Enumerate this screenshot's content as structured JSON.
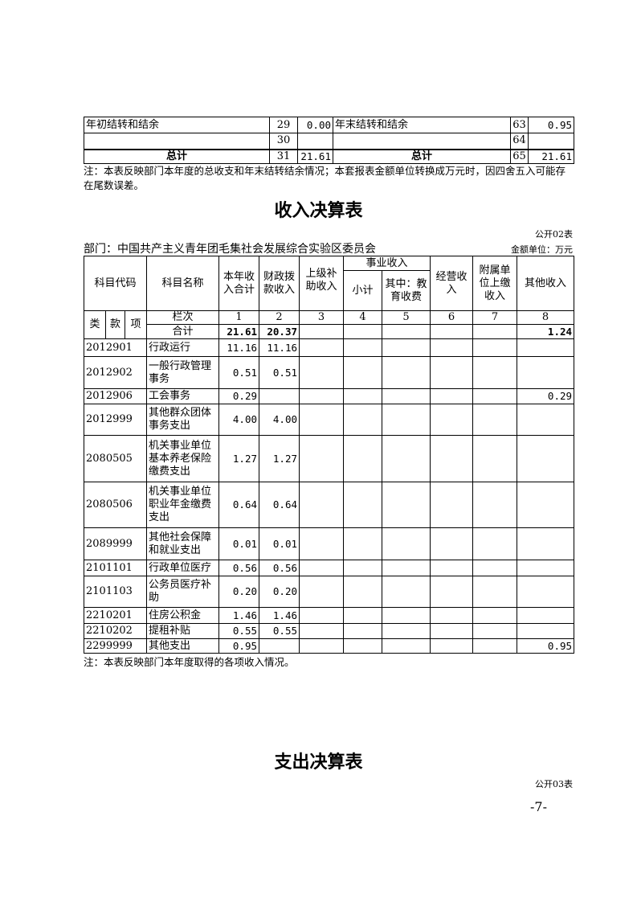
{
  "summary_table": {
    "rows": [
      {
        "left_label": "年初结转和结余",
        "left_no": "29",
        "left_value": "0.00",
        "right_label": "年末结转和结余",
        "right_no": "63",
        "right_value": "0.95"
      },
      {
        "left_label": "",
        "left_no": "30",
        "left_value": "",
        "right_label": "",
        "right_no": "64",
        "right_value": ""
      },
      {
        "left_label": "总计",
        "left_no": "31",
        "left_value": "21.61",
        "right_label": "总计",
        "right_no": "65",
        "right_value": "21.61"
      }
    ],
    "note": "注：本表反映部门本年度的总收支和年末结转结余情况；本套报表金额单位转换成万元时，因四舍五入可能存在尾数误差。"
  },
  "income_table": {
    "title": "收入决算表",
    "form_no": "公开02表",
    "department": "部门：中国共产主义青年团毛集社会发展综合实验区委员会",
    "unit": "金额单位：万元",
    "headers": {
      "code": "科目代码",
      "name": "科目名称",
      "c1": "本年收入合计",
      "c2": "财政拨款收入",
      "c3": "上级补助收入",
      "business": "事业收入",
      "c4": "小计",
      "c5": "其中：教育收费",
      "c6": "经营收入",
      "c7": "附属单位上缴收入",
      "c8": "其他收入",
      "lei": "类",
      "kuan": "款",
      "xiang": "项",
      "col_label": "栏次",
      "col_nums": [
        "1",
        "2",
        "3",
        "4",
        "5",
        "6",
        "7",
        "8"
      ]
    },
    "total": {
      "label": "合计",
      "c1": "21.61",
      "c2": "20.37",
      "c8": "1.24"
    },
    "rows": [
      {
        "code": "2012901",
        "name": "行政运行",
        "c1": "11.16",
        "c2": "11.16",
        "c8": ""
      },
      {
        "code": "2012902",
        "name": "一般行政管理事务",
        "c1": "0.51",
        "c2": "0.51",
        "c8": ""
      },
      {
        "code": "2012906",
        "name": "工会事务",
        "c1": "0.29",
        "c2": "",
        "c8": "0.29"
      },
      {
        "code": "2012999",
        "name": "其他群众团体事务支出",
        "c1": "4.00",
        "c2": "4.00",
        "c8": ""
      },
      {
        "code": "2080505",
        "name": "机关事业单位基本养老保险缴费支出",
        "c1": "1.27",
        "c2": "1.27",
        "c8": ""
      },
      {
        "code": "2080506",
        "name": "机关事业单位职业年金缴费支出",
        "c1": "0.64",
        "c2": "0.64",
        "c8": ""
      },
      {
        "code": "2089999",
        "name": "其他社会保障和就业支出",
        "c1": "0.01",
        "c2": "0.01",
        "c8": ""
      },
      {
        "code": "2101101",
        "name": "行政单位医疗",
        "c1": "0.56",
        "c2": "0.56",
        "c8": ""
      },
      {
        "code": "2101103",
        "name": "公务员医疗补助",
        "c1": "0.20",
        "c2": "0.20",
        "c8": ""
      },
      {
        "code": "2210201",
        "name": "住房公积金",
        "c1": "1.46",
        "c2": "1.46",
        "c8": ""
      },
      {
        "code": "2210202",
        "name": "提租补贴",
        "c1": "0.55",
        "c2": "0.55",
        "c8": ""
      },
      {
        "code": "2299999",
        "name": "其他支出",
        "c1": "0.95",
        "c2": "",
        "c8": "0.95"
      }
    ],
    "note": "注：本表反映部门本年度取得的各项收入情况。"
  },
  "expense_table": {
    "title": "支出决算表",
    "form_no": "公开03表"
  },
  "page_number": "-7-"
}
